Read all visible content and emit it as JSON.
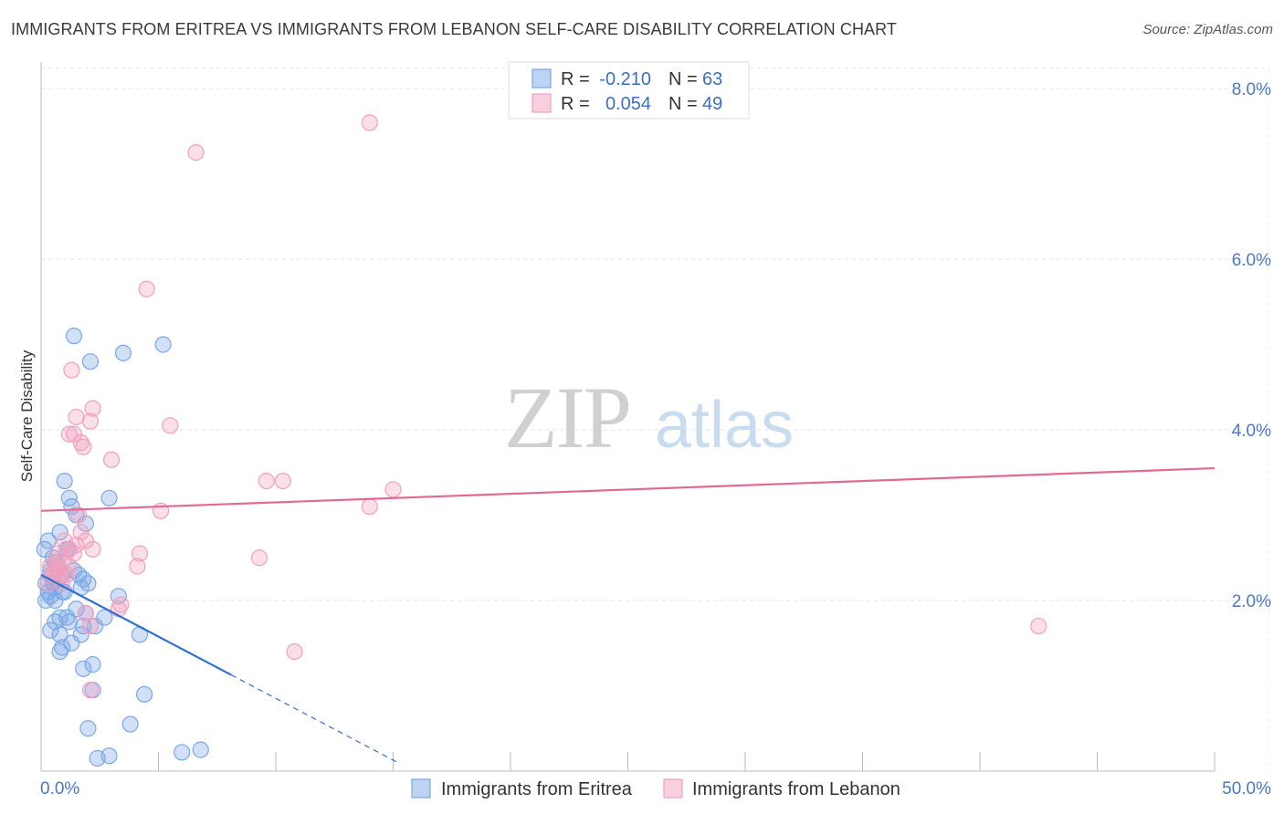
{
  "title": "IMMIGRANTS FROM ERITREA VS IMMIGRANTS FROM LEBANON SELF-CARE DISABILITY CORRELATION CHART",
  "source": "Source: ZipAtlas.com",
  "watermark": {
    "zip": "ZIP",
    "atlas": "atlas"
  },
  "chart_data": {
    "type": "scatter",
    "title": "IMMIGRANTS FROM ERITREA VS IMMIGRANTS FROM LEBANON SELF-CARE DISABILITY CORRELATION CHART",
    "xlabel": "",
    "ylabel": "Self-Care Disability",
    "xlim": [
      0,
      50
    ],
    "ylim": [
      0,
      8.5
    ],
    "x_tick_labels": [
      {
        "value": 0,
        "label": "0.0%"
      },
      {
        "value": 50,
        "label": "50.0%"
      }
    ],
    "y_tick_labels": [
      {
        "value": 2,
        "label": "2.0%"
      },
      {
        "value": 4,
        "label": "4.0%"
      },
      {
        "value": 6,
        "label": "6.0%"
      },
      {
        "value": 8,
        "label": "8.0%"
      }
    ],
    "grid": true,
    "legend_position": "top-center",
    "series": [
      {
        "name": "Immigrants from Eritrea",
        "color": "#7aa7e6",
        "line_color": "#2e6fd1",
        "stats": {
          "r_label": "R =",
          "r_value": "-0.210",
          "n_label": "N =",
          "n_value": "63"
        },
        "trend": {
          "x_start": 0,
          "y_start": 2.3,
          "x_solid_end": 8.1,
          "x_end": 15.2,
          "y_end": 0.1
        },
        "points": [
          [
            1.4,
            5.1
          ],
          [
            2.1,
            4.8
          ],
          [
            3.5,
            4.9
          ],
          [
            5.2,
            5.0
          ],
          [
            0.3,
            2.7
          ],
          [
            1.0,
            3.4
          ],
          [
            1.2,
            3.2
          ],
          [
            1.3,
            3.1
          ],
          [
            2.9,
            3.2
          ],
          [
            1.5,
            3.0
          ],
          [
            1.9,
            2.9
          ],
          [
            0.8,
            2.8
          ],
          [
            1.1,
            2.6
          ],
          [
            0.5,
            2.5
          ],
          [
            0.6,
            2.45
          ],
          [
            0.7,
            2.4
          ],
          [
            0.4,
            2.35
          ],
          [
            0.9,
            2.3
          ],
          [
            1.6,
            2.3
          ],
          [
            1.8,
            2.25
          ],
          [
            0.2,
            2.2
          ],
          [
            0.5,
            2.2
          ],
          [
            0.6,
            2.15
          ],
          [
            0.9,
            2.1
          ],
          [
            0.3,
            2.1
          ],
          [
            1.7,
            2.15
          ],
          [
            2.0,
            2.2
          ],
          [
            0.4,
            2.05
          ],
          [
            0.6,
            2.0
          ],
          [
            0.2,
            2.0
          ],
          [
            3.3,
            2.05
          ],
          [
            1.5,
            1.9
          ],
          [
            1.9,
            1.85
          ],
          [
            0.8,
            1.8
          ],
          [
            1.1,
            1.8
          ],
          [
            1.2,
            1.75
          ],
          [
            0.6,
            1.75
          ],
          [
            2.7,
            1.8
          ],
          [
            1.8,
            1.7
          ],
          [
            2.3,
            1.7
          ],
          [
            0.4,
            1.65
          ],
          [
            0.8,
            1.6
          ],
          [
            1.7,
            1.6
          ],
          [
            4.2,
            1.6
          ],
          [
            1.3,
            1.5
          ],
          [
            0.9,
            1.45
          ],
          [
            0.8,
            1.4
          ],
          [
            2.2,
            1.25
          ],
          [
            1.8,
            1.2
          ],
          [
            2.2,
            0.95
          ],
          [
            4.4,
            0.9
          ],
          [
            2.0,
            0.5
          ],
          [
            3.8,
            0.55
          ],
          [
            2.4,
            0.15
          ],
          [
            2.9,
            0.18
          ],
          [
            6.0,
            0.22
          ],
          [
            6.8,
            0.25
          ],
          [
            0.15,
            2.6
          ],
          [
            0.4,
            2.3
          ],
          [
            1.0,
            2.1
          ],
          [
            1.4,
            2.35
          ],
          [
            0.7,
            2.25
          ],
          [
            1.2,
            2.6
          ]
        ]
      },
      {
        "name": "Immigrants from Lebanon",
        "color": "#f0a0bd",
        "line_color": "#e06a95",
        "stats": {
          "r_label": "R =",
          "r_value": "0.054",
          "n_label": "N =",
          "n_value": "49"
        },
        "trend": {
          "x_start": 0,
          "y_start": 3.05,
          "x_end": 50,
          "y_end": 3.55
        },
        "points": [
          [
            14.0,
            7.6
          ],
          [
            6.6,
            7.25
          ],
          [
            4.5,
            5.65
          ],
          [
            1.3,
            4.7
          ],
          [
            2.2,
            4.25
          ],
          [
            1.5,
            4.15
          ],
          [
            2.1,
            4.1
          ],
          [
            5.5,
            4.05
          ],
          [
            1.2,
            3.95
          ],
          [
            1.4,
            3.95
          ],
          [
            1.7,
            3.85
          ],
          [
            1.8,
            3.8
          ],
          [
            3.0,
            3.65
          ],
          [
            9.6,
            3.4
          ],
          [
            10.3,
            3.4
          ],
          [
            15.0,
            3.3
          ],
          [
            14.0,
            3.1
          ],
          [
            5.1,
            3.05
          ],
          [
            1.6,
            3.0
          ],
          [
            1.7,
            2.8
          ],
          [
            1.0,
            2.7
          ],
          [
            1.2,
            2.6
          ],
          [
            2.2,
            2.6
          ],
          [
            1.4,
            2.55
          ],
          [
            4.2,
            2.55
          ],
          [
            0.7,
            2.55
          ],
          [
            1.0,
            2.5
          ],
          [
            9.3,
            2.5
          ],
          [
            0.6,
            2.4
          ],
          [
            0.8,
            2.35
          ],
          [
            0.5,
            2.3
          ],
          [
            1.1,
            2.3
          ],
          [
            4.1,
            2.4
          ],
          [
            0.3,
            2.2
          ],
          [
            0.9,
            2.2
          ],
          [
            3.4,
            1.95
          ],
          [
            3.3,
            1.9
          ],
          [
            1.9,
            1.85
          ],
          [
            2.1,
            1.7
          ],
          [
            10.8,
            1.4
          ],
          [
            2.1,
            0.95
          ],
          [
            42.5,
            1.7
          ],
          [
            0.4,
            2.4
          ],
          [
            0.7,
            2.45
          ],
          [
            1.5,
            2.65
          ],
          [
            0.6,
            2.35
          ],
          [
            1.2,
            2.4
          ],
          [
            1.9,
            2.7
          ],
          [
            0.8,
            2.3
          ]
        ]
      }
    ]
  }
}
